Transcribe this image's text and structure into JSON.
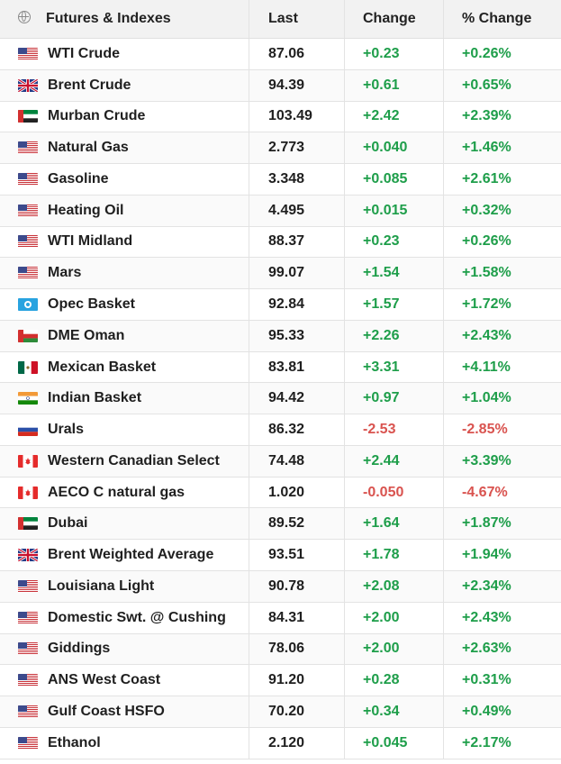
{
  "header": {
    "col_name": "Futures & Indexes",
    "col_last": "Last",
    "col_change": "Change",
    "col_pct": "% Change"
  },
  "colors": {
    "positive": "#1e9e4a",
    "negative": "#d9534f"
  },
  "rows": [
    {
      "flag": "us-flag-icon",
      "name": "WTI Crude",
      "last": "87.06",
      "change": "+0.23",
      "pct": "+0.26%",
      "dir": "pos"
    },
    {
      "flag": "uk-flag-icon",
      "name": "Brent Crude",
      "last": "94.39",
      "change": "+0.61",
      "pct": "+0.65%",
      "dir": "pos"
    },
    {
      "flag": "uae-flag-icon",
      "name": "Murban Crude",
      "last": "103.49",
      "change": "+2.42",
      "pct": "+2.39%",
      "dir": "pos"
    },
    {
      "flag": "us-flag-icon",
      "name": "Natural Gas",
      "last": "2.773",
      "change": "+0.040",
      "pct": "+1.46%",
      "dir": "pos"
    },
    {
      "flag": "us-flag-icon",
      "name": "Gasoline",
      "last": "3.348",
      "change": "+0.085",
      "pct": "+2.61%",
      "dir": "pos"
    },
    {
      "flag": "us-flag-icon",
      "name": "Heating Oil",
      "last": "4.495",
      "change": "+0.015",
      "pct": "+0.32%",
      "dir": "pos"
    },
    {
      "flag": "us-flag-icon",
      "name": "WTI Midland",
      "last": "88.37",
      "change": "+0.23",
      "pct": "+0.26%",
      "dir": "pos"
    },
    {
      "flag": "us-flag-icon",
      "name": "Mars",
      "last": "99.07",
      "change": "+1.54",
      "pct": "+1.58%",
      "dir": "pos"
    },
    {
      "flag": "opec-flag-icon",
      "name": "Opec Basket",
      "last": "92.84",
      "change": "+1.57",
      "pct": "+1.72%",
      "dir": "pos"
    },
    {
      "flag": "oman-flag-icon",
      "name": "DME Oman",
      "last": "95.33",
      "change": "+2.26",
      "pct": "+2.43%",
      "dir": "pos"
    },
    {
      "flag": "mexico-flag-icon",
      "name": "Mexican Basket",
      "last": "83.81",
      "change": "+3.31",
      "pct": "+4.11%",
      "dir": "pos"
    },
    {
      "flag": "india-flag-icon",
      "name": "Indian Basket",
      "last": "94.42",
      "change": "+0.97",
      "pct": "+1.04%",
      "dir": "pos"
    },
    {
      "flag": "russia-flag-icon",
      "name": "Urals",
      "last": "86.32",
      "change": "-2.53",
      "pct": "-2.85%",
      "dir": "neg"
    },
    {
      "flag": "canada-flag-icon",
      "name": "Western Canadian Select",
      "last": "74.48",
      "change": "+2.44",
      "pct": "+3.39%",
      "dir": "pos"
    },
    {
      "flag": "canada-flag-icon",
      "name": "AECO C natural gas",
      "last": "1.020",
      "change": "-0.050",
      "pct": "-4.67%",
      "dir": "neg"
    },
    {
      "flag": "uae-flag-icon",
      "name": "Dubai",
      "last": "89.52",
      "change": "+1.64",
      "pct": "+1.87%",
      "dir": "pos"
    },
    {
      "flag": "uk-flag-icon",
      "name": "Brent Weighted Average",
      "last": "93.51",
      "change": "+1.78",
      "pct": "+1.94%",
      "dir": "pos"
    },
    {
      "flag": "us-flag-icon",
      "name": "Louisiana Light",
      "last": "90.78",
      "change": "+2.08",
      "pct": "+2.34%",
      "dir": "pos"
    },
    {
      "flag": "us-flag-icon",
      "name": "Domestic Swt. @ Cushing",
      "last": "84.31",
      "change": "+2.00",
      "pct": "+2.43%",
      "dir": "pos"
    },
    {
      "flag": "us-flag-icon",
      "name": "Giddings",
      "last": "78.06",
      "change": "+2.00",
      "pct": "+2.63%",
      "dir": "pos"
    },
    {
      "flag": "us-flag-icon",
      "name": "ANS West Coast",
      "last": "91.20",
      "change": "+0.28",
      "pct": "+0.31%",
      "dir": "pos"
    },
    {
      "flag": "us-flag-icon",
      "name": "Gulf Coast HSFO",
      "last": "70.20",
      "change": "+0.34",
      "pct": "+0.49%",
      "dir": "pos"
    },
    {
      "flag": "us-flag-icon",
      "name": "Ethanol",
      "last": "2.120",
      "change": "+0.045",
      "pct": "+2.17%",
      "dir": "pos"
    }
  ]
}
